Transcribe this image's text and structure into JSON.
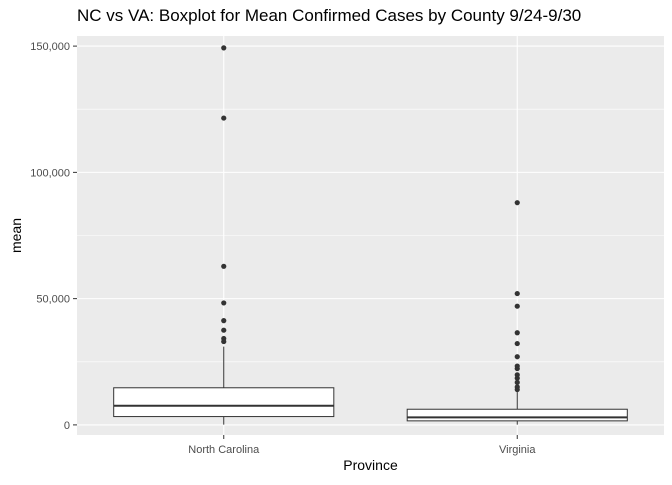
{
  "chart_data": {
    "type": "boxplot",
    "title": "NC vs VA: Boxplot for Mean Confirmed Cases by County 9/24-9/30",
    "xlabel": "Province",
    "ylabel": "mean",
    "categories": [
      "North Carolina",
      "Virginia"
    ],
    "ylim": [
      -4000,
      154000
    ],
    "yticks": [
      0,
      50000,
      100000,
      150000
    ],
    "ytick_labels": [
      "0",
      "50,000",
      "100,000",
      "150,000"
    ],
    "grid": true,
    "boxes": [
      {
        "category": "North Carolina",
        "whisker_low": 100,
        "q1": 3300,
        "median": 7600,
        "q3": 14700,
        "whisker_high": 31000,
        "outliers": [
          33000,
          34200,
          37500,
          41300,
          48300,
          62800,
          121500,
          149300
        ]
      },
      {
        "category": "Virginia",
        "whisker_low": 100,
        "q1": 1600,
        "median": 3000,
        "q3": 6200,
        "whisker_high": 13000,
        "outliers": [
          14000,
          15000,
          16800,
          18500,
          19800,
          22300,
          23300,
          27000,
          32200,
          36500,
          47000,
          52000,
          88000
        ]
      }
    ],
    "colors": {
      "panel": "#ebebeb",
      "grid_major": "#ffffff",
      "box_fill": "#ffffff",
      "box_line": "#333333",
      "outlier": "#333333",
      "tick_text": "#4d4d4d"
    }
  }
}
